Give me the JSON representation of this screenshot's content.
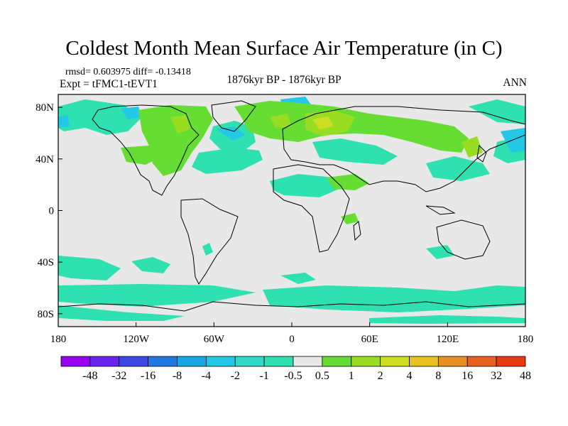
{
  "header": {
    "title": "Coldest Month Mean Surface Air Temperature (in C)",
    "stats": "rmsd= 0.603975 diff= -0.13418",
    "experiment": "Expt = tFMC1-tEVT1",
    "period": "1876kyr BP - 1876kyr BP",
    "season": "ANN"
  },
  "map": {
    "projection": "cylindrical-equidistant",
    "lon_range": [
      -180,
      180
    ],
    "lat_range": [
      -90,
      90
    ],
    "lon_ticks": [
      {
        "value": -180,
        "label": "180"
      },
      {
        "value": -120,
        "label": "120W"
      },
      {
        "value": -60,
        "label": "60W"
      },
      {
        "value": 0,
        "label": "0"
      },
      {
        "value": 60,
        "label": "60E"
      },
      {
        "value": 120,
        "label": "120E"
      },
      {
        "value": 180,
        "label": "180"
      }
    ],
    "lat_ticks": [
      {
        "value": 80,
        "label": "80N"
      },
      {
        "value": 40,
        "label": "40N"
      },
      {
        "value": 0,
        "label": "0"
      },
      {
        "value": -40,
        "label": "40S"
      },
      {
        "value": -80,
        "label": "80S"
      }
    ],
    "background_color": "#e8e8e8",
    "coastline_color": "#000000"
  },
  "colorbar": {
    "boundary_labels": [
      "-48",
      "-32",
      "-16",
      "-8",
      "-4",
      "-2",
      "-1",
      "-0.5",
      "0.5",
      "1",
      "2",
      "4",
      "8",
      "16",
      "32",
      "48"
    ],
    "colors": [
      "#9900ee",
      "#6a22ee",
      "#3c47e8",
      "#1f78e0",
      "#18a6e4",
      "#22c8e6",
      "#32d8c8",
      "#2fe0b0",
      "#e8e8e8",
      "#66dd33",
      "#99dd22",
      "#ccdd22",
      "#e8c020",
      "#e89020",
      "#e86020",
      "#e83a10"
    ]
  }
}
